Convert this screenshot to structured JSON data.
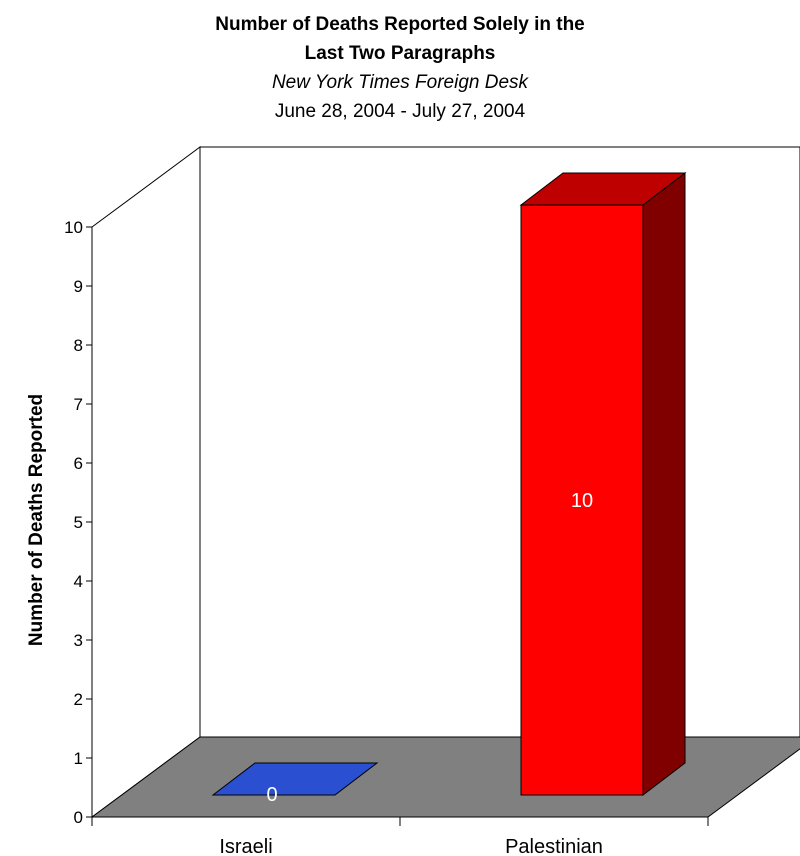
{
  "chart_data": {
    "type": "bar",
    "title_line1": "Number of Deaths Reported Solely in the",
    "title_line2": "Last Two Paragraphs",
    "subtitle": "New York Times Foreign Desk",
    "date_range": "June 28, 2004 - July 27, 2004",
    "ylabel": "Number of Deaths Reported",
    "xlabel": "",
    "categories": [
      "Israeli",
      "Palestinian"
    ],
    "values": [
      0,
      10
    ],
    "data_labels": [
      "0",
      "10"
    ],
    "colors": [
      "#2a4fd0",
      "#ff0000"
    ],
    "ylim": [
      0,
      10
    ],
    "yticks": [
      "0",
      "1",
      "2",
      "3",
      "4",
      "5",
      "6",
      "7",
      "8",
      "9",
      "10"
    ],
    "floor_color": "#808080",
    "legend": "none"
  }
}
